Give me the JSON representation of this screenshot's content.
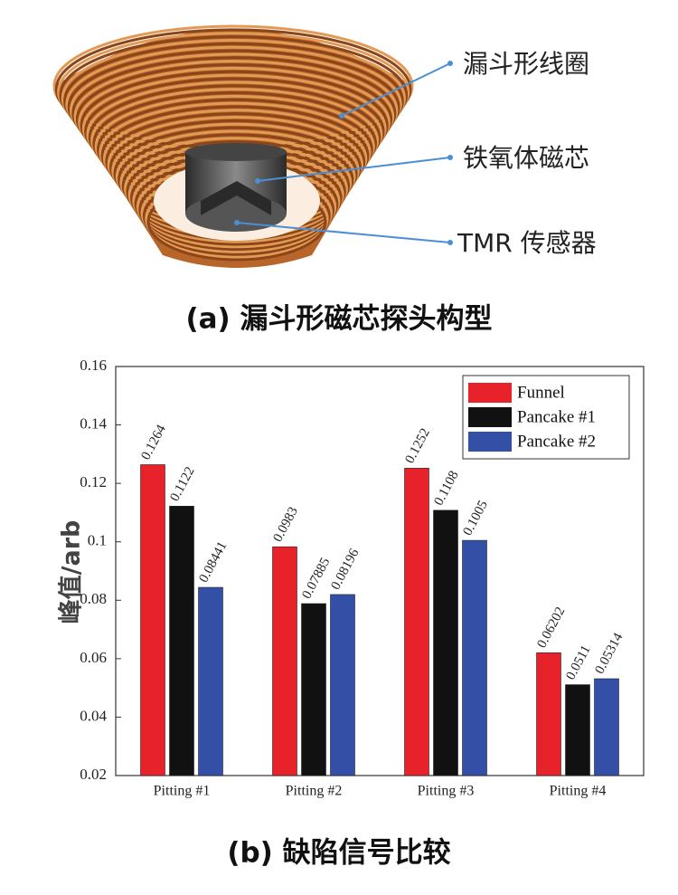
{
  "panel_a": {
    "labels": [
      "漏斗形线圈",
      "铁氧体磁芯",
      "TMR 传感器"
    ],
    "caption": "(a) 漏斗形磁芯探头构型"
  },
  "chart_data": {
    "type": "bar",
    "ylabel": "峰值/arb",
    "categories": [
      "Pitting #1",
      "Pitting #2",
      "Pitting #3",
      "Pitting #4"
    ],
    "series": [
      {
        "name": "Funnel",
        "color": "#e8222b",
        "values": [
          0.1264,
          0.0983,
          0.1252,
          0.06202
        ]
      },
      {
        "name": "Pancake #1",
        "color": "#111111",
        "values": [
          0.1122,
          0.07885,
          0.1108,
          0.0511
        ]
      },
      {
        "name": "Pancake #2",
        "color": "#3450a6",
        "values": [
          0.08441,
          0.08196,
          0.1005,
          0.05314
        ]
      }
    ],
    "ylim": [
      0.02,
      0.16
    ],
    "yticks": [
      0.02,
      0.04,
      0.06,
      0.08,
      0.1,
      0.12,
      0.14,
      0.16
    ],
    "grid": false,
    "legend": "upper-right",
    "caption": "(b) 缺陷信号比较"
  }
}
